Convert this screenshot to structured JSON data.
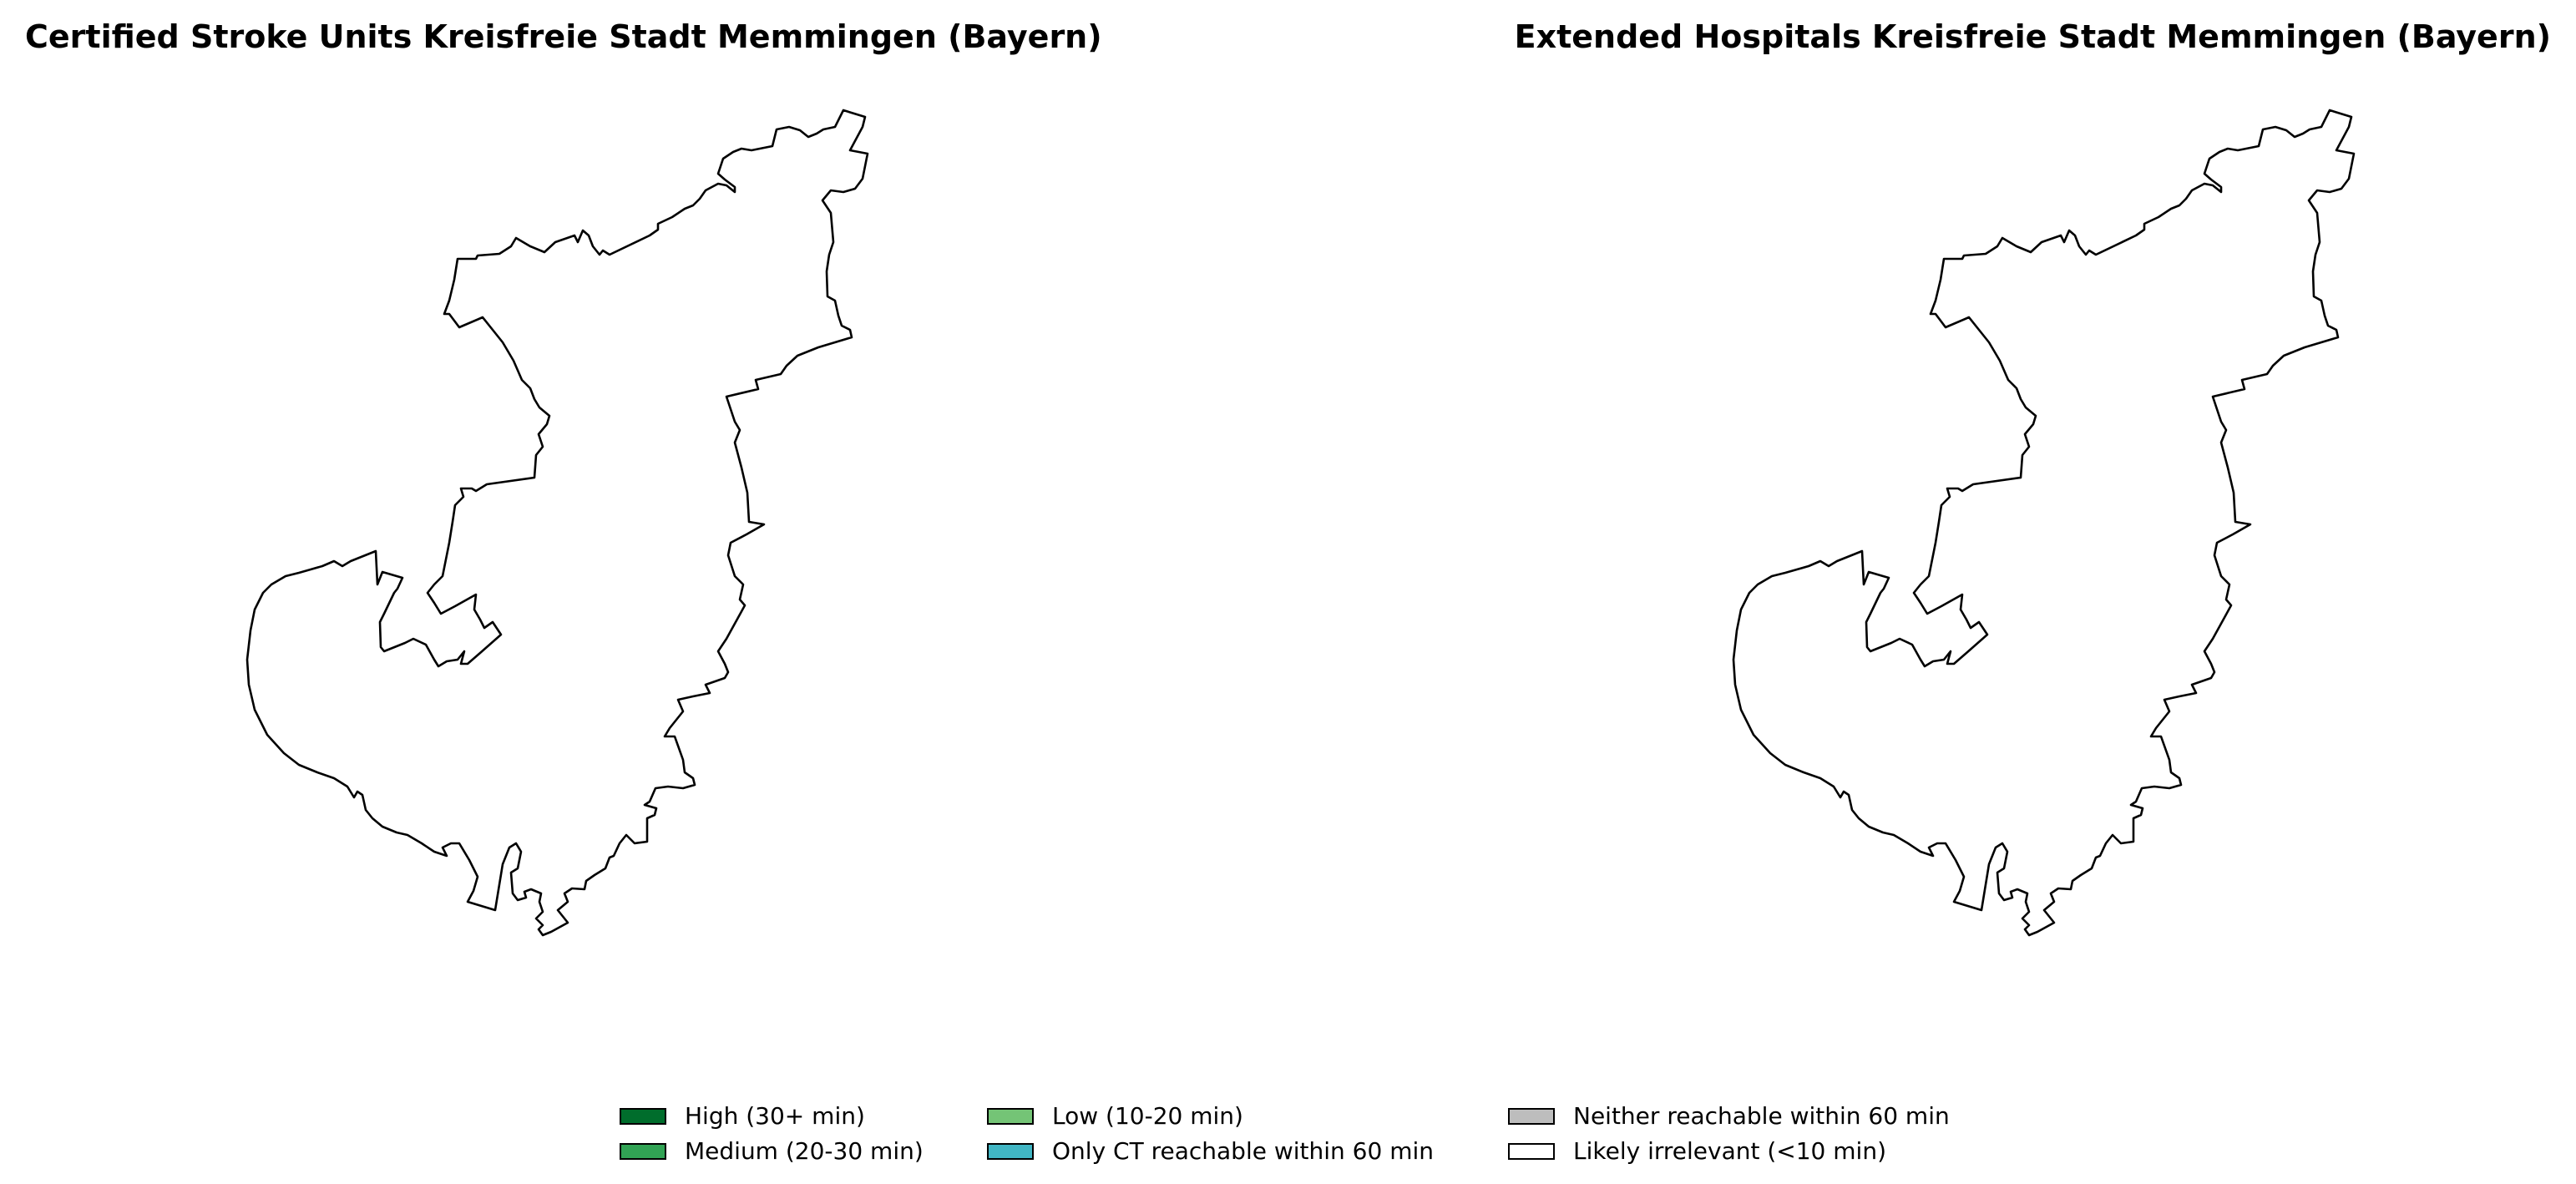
{
  "maps": {
    "left": {
      "title": "Certified Stroke Units Kreisfreie Stadt Memmingen (Bayern)"
    },
    "right": {
      "title": "Extended Hospitals Kreisfreie Stadt Memmingen (Bayern)"
    }
  },
  "legend": {
    "items": [
      {
        "label": "High (30+ min)",
        "color": "#006d2c"
      },
      {
        "label": "Medium (20-30 min)",
        "color": "#31a354"
      },
      {
        "label": "Low (10-20 min)",
        "color": "#74c476"
      },
      {
        "label": "Only CT reachable within 60 min",
        "color": "#41b6c4"
      },
      {
        "label": "Neither reachable within 60 min",
        "color": "#bdbdbd"
      },
      {
        "label": "Likely irrelevant (<10 min)",
        "color": "#ffffff"
      }
    ]
  }
}
